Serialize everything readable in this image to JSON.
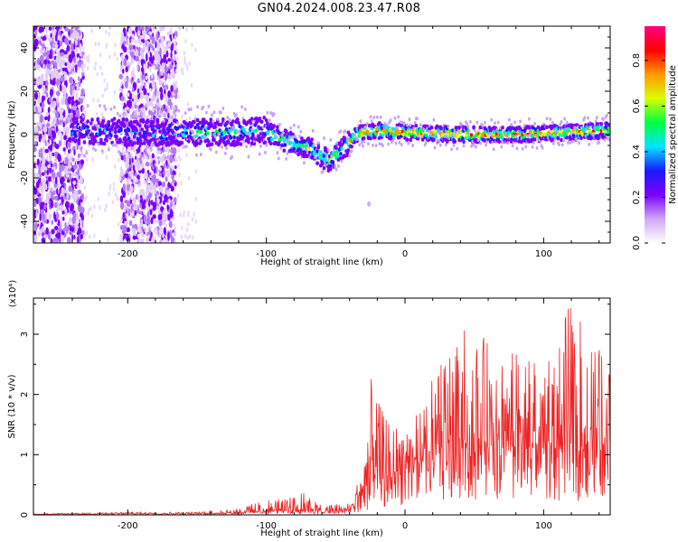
{
  "title": "GN04.2024.008.23.47.R08",
  "chart_data": [
    {
      "type": "heatmap",
      "xlabel": "Height of straight line (km)",
      "ylabel": "Frequency (Hz)",
      "xlim": [
        -268,
        148
      ],
      "ylim": [
        -50,
        50
      ],
      "x_ticks": [
        -200,
        -100,
        0,
        100
      ],
      "y_ticks": [
        40,
        20,
        0,
        -20,
        -40
      ],
      "colorbar": {
        "label": "Normalized spectral amplitude",
        "range": [
          0,
          0.95
        ],
        "ticks": [
          0.0,
          0.2,
          0.4,
          0.6,
          0.8
        ],
        "colors": [
          "#ffffff",
          "#cfa8f5",
          "#7a00ff",
          "#1a1aff",
          "#00e6ff",
          "#00ff40",
          "#d8ff00",
          "#ff9900",
          "#ff0000",
          "#ff0080"
        ]
      },
      "centerline": {
        "x": [
          -235,
          -200,
          -160,
          -120,
          -100,
          -90,
          -70,
          -55,
          -45,
          -35,
          -20,
          0,
          40,
          80,
          120,
          148
        ],
        "y": [
          2,
          1,
          1,
          1,
          2,
          -2,
          -6,
          -12,
          -7,
          0,
          2,
          1,
          0,
          0,
          1,
          2
        ]
      },
      "noise_bands_x": [
        [
          -268,
          -232
        ],
        [
          -205,
          -165
        ]
      ]
    },
    {
      "type": "line",
      "xlabel": "Height of straight line (km)",
      "ylabel": "SNR (10 * v/v)",
      "y_multiplier": "(x10⁴)",
      "xlim": [
        -268,
        148
      ],
      "ylim": [
        0,
        3.6
      ],
      "x_ticks": [
        -200,
        -100,
        0,
        100
      ],
      "y_ticks": [
        0,
        1,
        2,
        3
      ],
      "color": "#ee2222",
      "envelope": {
        "x": [
          -268,
          -200,
          -150,
          -120,
          -100,
          -80,
          -70,
          -60,
          -40,
          -30,
          -25,
          -20,
          -10,
          0,
          10,
          20,
          30,
          40,
          60,
          80,
          100,
          120,
          140,
          148
        ],
        "y": [
          0.02,
          0.05,
          0.05,
          0.12,
          0.25,
          0.3,
          0.4,
          0.15,
          0.2,
          0.8,
          2.3,
          1.9,
          1.5,
          1.5,
          1.7,
          2.3,
          2.7,
          3.2,
          2.9,
          2.7,
          2.9,
          3.5,
          2.8,
          2.4
        ]
      },
      "baseline": {
        "x": [
          -268,
          -200,
          -150,
          -120,
          -100,
          -80,
          -70,
          -60,
          -40,
          -30,
          -25,
          -20,
          -10,
          0,
          20,
          40,
          80,
          120,
          148
        ],
        "y": [
          0.01,
          0.02,
          0.02,
          0.04,
          0.06,
          0.08,
          0.1,
          0.05,
          0.08,
          0.3,
          0.5,
          0.6,
          0.6,
          0.7,
          1.0,
          1.1,
          1.1,
          1.1,
          1.2
        ]
      }
    }
  ]
}
